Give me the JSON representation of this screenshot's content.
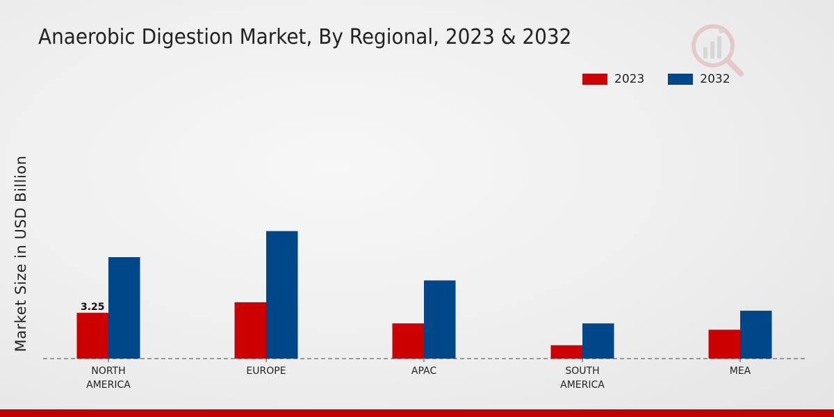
{
  "colors": {
    "series_2023": "#cc0000",
    "series_2032": "#00478a",
    "axis": "#444444",
    "text": "#222222",
    "bottom_bar": "#c60000"
  },
  "logo": {
    "icon": "chart-magnifier-logo-icon"
  },
  "chart_data": {
    "type": "bar",
    "title": "Anaerobic Digestion Market, By Regional, 2023 & 2032",
    "xlabel": "",
    "ylabel": "Market Size in USD Billion",
    "categories": [
      "NORTH\nAMERICA",
      "EUROPE",
      "APAC",
      "SOUTH\nAMERICA",
      "MEA"
    ],
    "series": [
      {
        "name": "2023",
        "values": [
          3.25,
          4.0,
          2.5,
          0.95,
          2.05
        ]
      },
      {
        "name": "2032",
        "values": [
          7.2,
          9.05,
          5.55,
          2.5,
          3.4
        ]
      }
    ],
    "data_labels": [
      {
        "series": "2023",
        "category_index": 0,
        "text": "3.25"
      }
    ],
    "ylim": [
      0,
      14.5
    ],
    "grid": false,
    "legend_position": "top-right"
  }
}
